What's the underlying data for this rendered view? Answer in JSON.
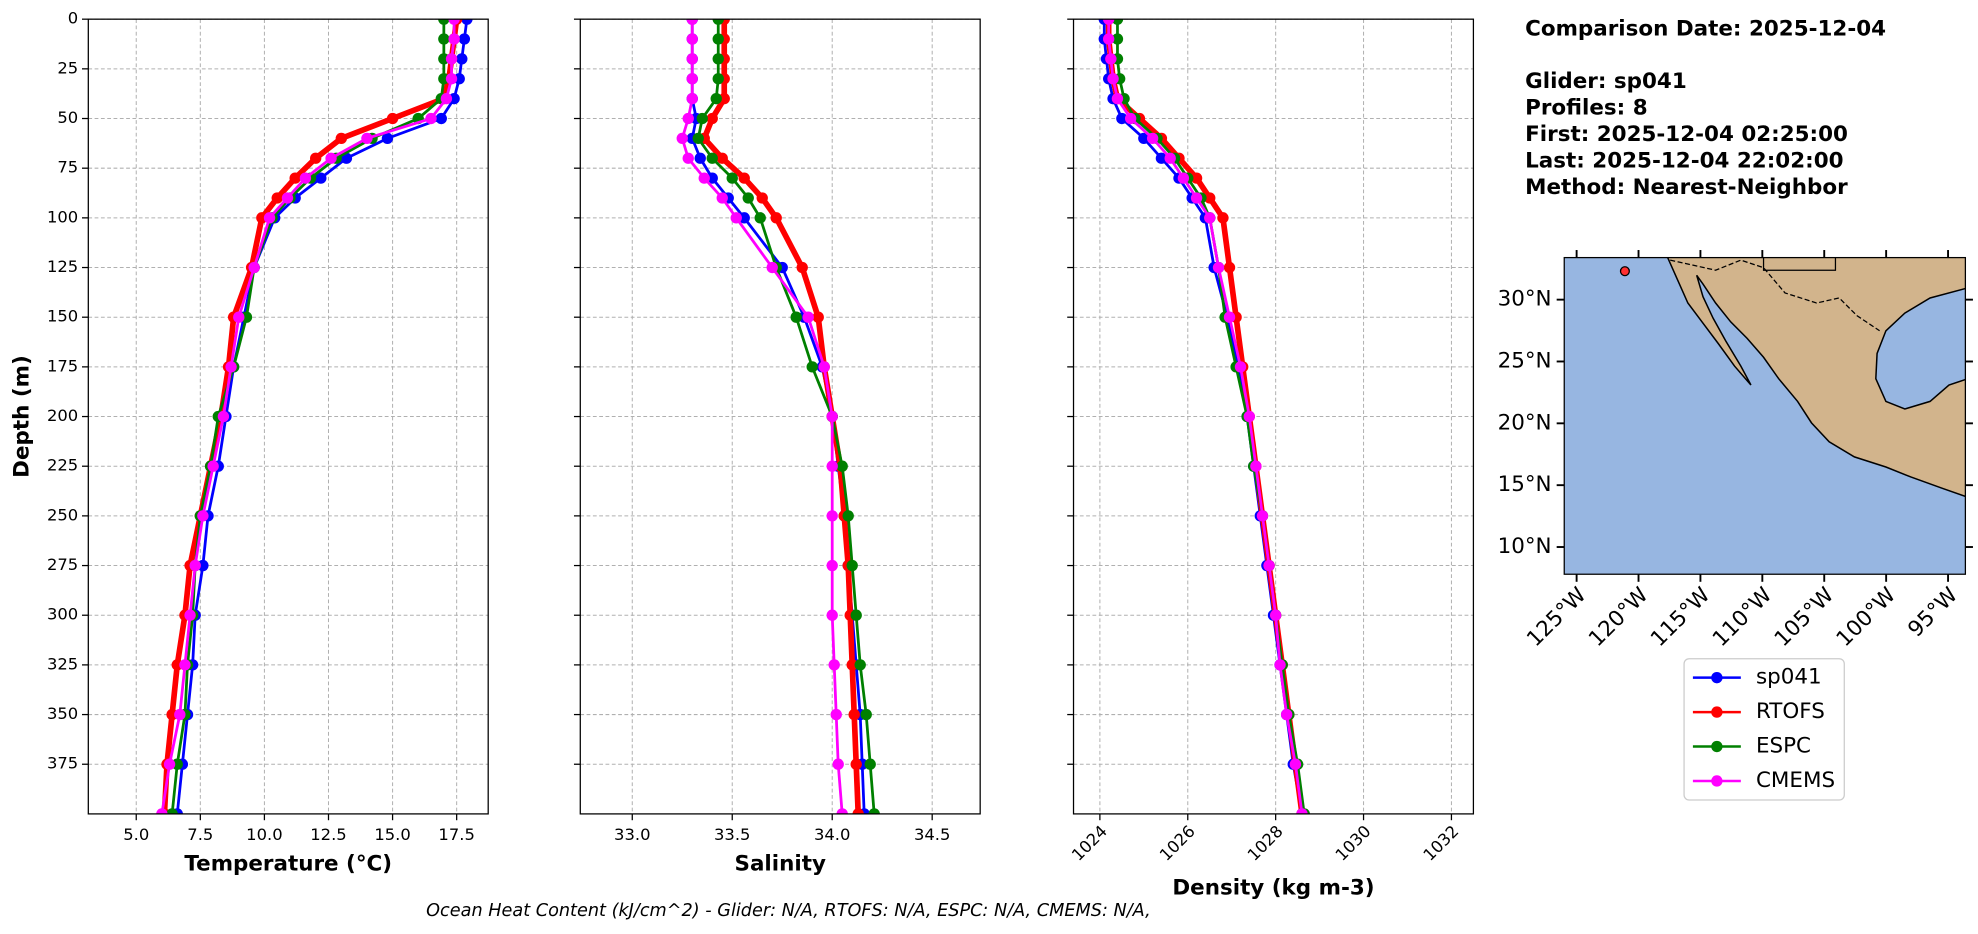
{
  "info": {
    "title": "Comparison Date: 2025-12-04",
    "lines": [
      "Glider: sp041",
      "Profiles: 8",
      "First: 2025-12-04 02:25:00",
      "Last: 2025-12-04 22:02:00",
      "Method: Nearest-Neighbor"
    ]
  },
  "footer": "Ocean Heat Content (kJ/cm^2) - Glider: N/A,  RTOFS: N/A,  ESPC: N/A,  CMEMS: N/A,",
  "chart_data": [
    {
      "type": "profile",
      "xlabel": "Temperature (°C)",
      "ylabel": "Depth (m)",
      "xlim": [
        3.13,
        18.73
      ],
      "ylim": [
        400,
        0
      ],
      "xticks": [
        {
          "value": 5,
          "label": "5.0"
        },
        7.5,
        {
          "value": 10,
          "label": "10.0"
        },
        12.5,
        {
          "value": 15,
          "label": "15.0"
        },
        17.5
      ],
      "yticks": [
        0,
        25,
        50,
        75,
        100,
        125,
        150,
        175,
        200,
        225,
        250,
        275,
        300,
        325,
        350,
        375
      ],
      "grid": true,
      "depths": [
        0,
        10,
        20,
        30,
        40,
        50,
        60,
        70,
        80,
        90,
        100,
        125,
        150,
        175,
        200,
        225,
        250,
        275,
        300,
        325,
        350,
        375,
        400
      ],
      "series": [
        {
          "name": "sp041",
          "color": "#0000ff",
          "values": [
            17.9,
            17.8,
            17.7,
            17.6,
            17.4,
            16.9,
            14.8,
            13.2,
            12.2,
            11.2,
            10.4,
            9.6,
            9.2,
            8.8,
            8.5,
            8.2,
            7.8,
            7.6,
            7.3,
            7.2,
            7.0,
            6.8,
            6.6
          ]
        },
        {
          "name": "RTOFS",
          "color": "#ff0000",
          "values": [
            17.5,
            17.4,
            17.3,
            17.2,
            17.0,
            15.0,
            13.0,
            12.0,
            11.2,
            10.5,
            9.9,
            9.5,
            8.8,
            8.6,
            8.3,
            7.9,
            7.5,
            7.1,
            6.9,
            6.6,
            6.4,
            6.2,
            6.1
          ]
        },
        {
          "name": "ESPC",
          "color": "#008000",
          "values": [
            17.0,
            17.0,
            17.0,
            17.0,
            16.9,
            16.0,
            14.2,
            12.8,
            11.8,
            11.0,
            10.3,
            9.6,
            9.3,
            8.8,
            8.2,
            7.9,
            7.5,
            7.3,
            7.2,
            7.0,
            6.9,
            6.6,
            6.4
          ]
        },
        {
          "name": "CMEMS",
          "color": "#ff00ff",
          "values": [
            17.4,
            17.4,
            17.3,
            17.3,
            17.1,
            16.5,
            14.0,
            12.6,
            11.6,
            10.9,
            10.2,
            9.6,
            9.0,
            8.7,
            8.4,
            8.0,
            7.6,
            7.3,
            7.1,
            6.9,
            6.7,
            6.3,
            6.0
          ]
        }
      ]
    },
    {
      "type": "profile",
      "xlabel": "Salinity",
      "xlim": [
        32.74,
        34.74
      ],
      "ylim": [
        400,
        0
      ],
      "xticks": [
        {
          "value": 33,
          "label": "33.0"
        },
        33.5,
        {
          "value": 34,
          "label": "34.0"
        },
        34.5
      ],
      "yticks": [
        0,
        25,
        50,
        75,
        100,
        125,
        150,
        175,
        200,
        225,
        250,
        275,
        300,
        325,
        350,
        375
      ],
      "grid": true,
      "depths": [
        0,
        10,
        20,
        30,
        40,
        50,
        60,
        70,
        80,
        90,
        100,
        125,
        150,
        175,
        200,
        225,
        250,
        275,
        300,
        325,
        350,
        375,
        400
      ],
      "series": [
        {
          "name": "sp041",
          "color": "#0000ff",
          "values": [
            33.3,
            33.3,
            33.3,
            33.3,
            33.3,
            33.32,
            33.3,
            33.34,
            33.4,
            33.48,
            33.56,
            33.75,
            33.86,
            33.95,
            34.0,
            34.03,
            34.06,
            34.08,
            34.1,
            34.12,
            34.14,
            34.15,
            34.16
          ]
        },
        {
          "name": "RTOFS",
          "color": "#ff0000",
          "values": [
            33.46,
            33.46,
            33.46,
            33.46,
            33.46,
            33.4,
            33.36,
            33.45,
            33.56,
            33.65,
            33.72,
            33.85,
            33.93,
            33.96,
            34.0,
            34.04,
            34.06,
            34.08,
            34.09,
            34.1,
            34.11,
            34.12,
            34.13
          ]
        },
        {
          "name": "ESPC",
          "color": "#008000",
          "values": [
            33.43,
            33.43,
            33.43,
            33.43,
            33.42,
            33.35,
            33.33,
            33.4,
            33.5,
            33.58,
            33.64,
            33.72,
            33.82,
            33.9,
            34.0,
            34.05,
            34.08,
            34.1,
            34.12,
            34.14,
            34.17,
            34.19,
            34.21
          ]
        },
        {
          "name": "CMEMS",
          "color": "#ff00ff",
          "values": [
            33.3,
            33.3,
            33.3,
            33.3,
            33.3,
            33.28,
            33.25,
            33.28,
            33.36,
            33.45,
            33.52,
            33.7,
            33.88,
            33.96,
            34.0,
            34.0,
            34.0,
            34.0,
            34.0,
            34.01,
            34.02,
            34.03,
            34.05
          ]
        }
      ]
    },
    {
      "type": "profile",
      "xlabel": "Density (kg m-3)",
      "xlim": [
        1023.4,
        1032.5
      ],
      "ylim": [
        400,
        0
      ],
      "xticks": [
        1024,
        1026,
        1028,
        1030,
        1032
      ],
      "yticks": [
        0,
        25,
        50,
        75,
        100,
        125,
        150,
        175,
        200,
        225,
        250,
        275,
        300,
        325,
        350,
        375
      ],
      "grid": true,
      "rotate_xticks": true,
      "depths": [
        0,
        10,
        20,
        30,
        40,
        50,
        60,
        70,
        80,
        90,
        100,
        125,
        150,
        175,
        200,
        225,
        250,
        275,
        300,
        325,
        350,
        375,
        400
      ],
      "series": [
        {
          "name": "sp041",
          "color": "#0000ff",
          "values": [
            1024.1,
            1024.1,
            1024.15,
            1024.2,
            1024.3,
            1024.5,
            1025.0,
            1025.4,
            1025.8,
            1026.1,
            1026.4,
            1026.6,
            1026.9,
            1027.15,
            1027.35,
            1027.5,
            1027.65,
            1027.8,
            1027.95,
            1028.1,
            1028.25,
            1028.4,
            1028.6
          ]
        },
        {
          "name": "RTOFS",
          "color": "#ff0000",
          "values": [
            1024.2,
            1024.2,
            1024.25,
            1024.3,
            1024.4,
            1024.9,
            1025.4,
            1025.8,
            1026.2,
            1026.5,
            1026.8,
            1026.95,
            1027.1,
            1027.25,
            1027.4,
            1027.55,
            1027.7,
            1027.85,
            1028.0,
            1028.15,
            1028.3,
            1028.45,
            1028.6
          ]
        },
        {
          "name": "ESPC",
          "color": "#008000",
          "values": [
            1024.4,
            1024.4,
            1024.4,
            1024.45,
            1024.55,
            1024.8,
            1025.3,
            1025.7,
            1026.0,
            1026.3,
            1026.5,
            1026.7,
            1026.85,
            1027.1,
            1027.35,
            1027.5,
            1027.7,
            1027.85,
            1028.0,
            1028.15,
            1028.3,
            1028.5,
            1028.65
          ]
        },
        {
          "name": "CMEMS",
          "color": "#ff00ff",
          "values": [
            1024.2,
            1024.2,
            1024.25,
            1024.3,
            1024.4,
            1024.7,
            1025.2,
            1025.6,
            1025.9,
            1026.2,
            1026.5,
            1026.7,
            1026.95,
            1027.2,
            1027.4,
            1027.55,
            1027.7,
            1027.85,
            1028.0,
            1028.1,
            1028.25,
            1028.45,
            1028.6
          ]
        }
      ]
    },
    {
      "type": "map",
      "xlim": [
        -126,
        -93.6
      ],
      "ylim": [
        7.8,
        33.4
      ],
      "xticks": [
        {
          "value": -125,
          "label": "125°W"
        },
        {
          "value": -120,
          "label": "120°W"
        },
        {
          "value": -115,
          "label": "115°W"
        },
        {
          "value": -110,
          "label": "110°W"
        },
        {
          "value": -105,
          "label": "105°W"
        },
        {
          "value": -100,
          "label": "100°W"
        },
        {
          "value": -95,
          "label": "95°W"
        }
      ],
      "yticks": [
        {
          "value": 10,
          "label": "10°N"
        },
        {
          "value": 15,
          "label": "15°N"
        },
        {
          "value": 20,
          "label": "20°N"
        },
        {
          "value": 25,
          "label": "25°N"
        },
        {
          "value": 30,
          "label": "30°N"
        }
      ],
      "point": {
        "x": -121.1,
        "y": 32.3,
        "color": "#ff3030"
      }
    }
  ]
}
